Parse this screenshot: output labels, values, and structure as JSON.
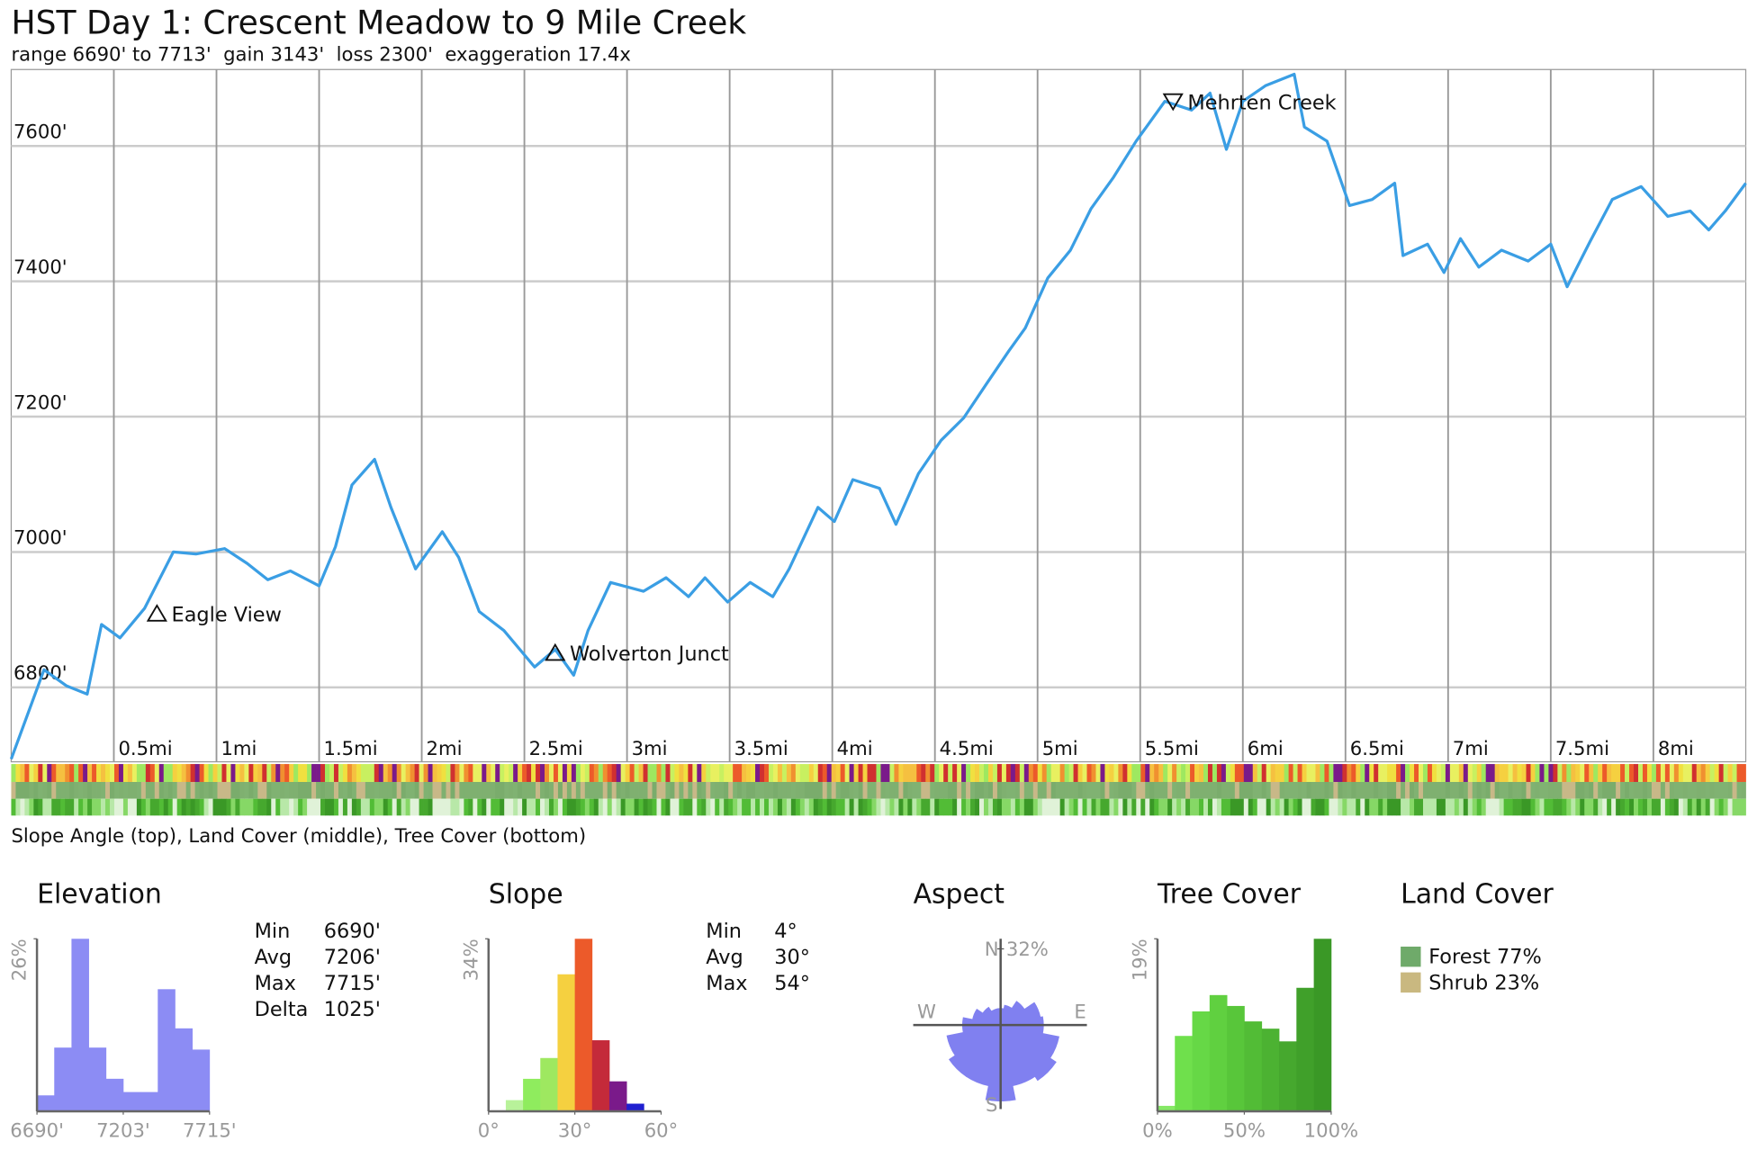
{
  "title": "HST Day 1: Crescent Meadow to 9 Mile Creek",
  "subtitle": "range 6690' to 7713'  gain 3143'  loss 2300'  exaggeration 17.4x",
  "strip_caption": "Slope Angle (top), Land Cover (middle), Tree Cover (bottom)",
  "chart_data": [
    {
      "type": "line",
      "color": "#3a9ee4",
      "grid": true,
      "xlim": [
        0,
        8.45
      ],
      "ylim": [
        6690,
        7713
      ],
      "xticks": [
        {
          "value": 0.5,
          "label": "0.5mi"
        },
        {
          "value": 1,
          "label": "1mi"
        },
        {
          "value": 1.5,
          "label": "1.5mi"
        },
        {
          "value": 2,
          "label": "2mi"
        },
        {
          "value": 2.5,
          "label": "2.5mi"
        },
        {
          "value": 3,
          "label": "3mi"
        },
        {
          "value": 3.5,
          "label": "3.5mi"
        },
        {
          "value": 4,
          "label": "4mi"
        },
        {
          "value": 4.5,
          "label": "4.5mi"
        },
        {
          "value": 5,
          "label": "5mi"
        },
        {
          "value": 5.5,
          "label": "5.5mi"
        },
        {
          "value": 6,
          "label": "6mi"
        },
        {
          "value": 6.5,
          "label": "6.5mi"
        },
        {
          "value": 7,
          "label": "7mi"
        },
        {
          "value": 7.5,
          "label": "7.5mi"
        },
        {
          "value": 8,
          "label": "8mi"
        }
      ],
      "yticks": [
        {
          "value": 6800,
          "label": "6800'"
        },
        {
          "value": 7000,
          "label": "7000'"
        },
        {
          "value": 7200,
          "label": "7200'"
        },
        {
          "value": 7400,
          "label": "7400'"
        },
        {
          "value": 7600,
          "label": "7600'"
        }
      ],
      "x": [
        0,
        0.16,
        0.27,
        0.37,
        0.44,
        0.53,
        0.65,
        0.79,
        0.9,
        1.04,
        1.15,
        1.25,
        1.36,
        1.5,
        1.58,
        1.66,
        1.77,
        1.85,
        1.97,
        2.1,
        2.18,
        2.28,
        2.4,
        2.55,
        2.65,
        2.74,
        2.81,
        2.92,
        3.08,
        3.19,
        3.3,
        3.38,
        3.49,
        3.6,
        3.71,
        3.79,
        3.93,
        4.01,
        4.1,
        4.23,
        4.31,
        4.42,
        4.53,
        4.64,
        4.75,
        4.86,
        4.94,
        5.05,
        5.16,
        5.26,
        5.37,
        5.48,
        5.62,
        5.75,
        5.84,
        5.92,
        6.0,
        6.11,
        6.25,
        6.3,
        6.41,
        6.52,
        6.63,
        6.74,
        6.78,
        6.9,
        6.98,
        7.06,
        7.15,
        7.26,
        7.39,
        7.5,
        7.58,
        7.69,
        7.8,
        7.94,
        8.07,
        8.18,
        8.27,
        8.35,
        8.45
      ],
      "values": [
        6694,
        6826,
        6802,
        6790,
        6893,
        6873,
        6917,
        7000,
        6997,
        7005,
        6983,
        6959,
        6972,
        6950,
        7008,
        7099,
        7137,
        7066,
        6975,
        7030,
        6992,
        6912,
        6884,
        6830,
        6856,
        6818,
        6884,
        6955,
        6942,
        6962,
        6934,
        6962,
        6926,
        6955,
        6934,
        6975,
        7066,
        7045,
        7107,
        7094,
        7041,
        7116,
        7165,
        7198,
        7248,
        7297,
        7331,
        7405,
        7446,
        7507,
        7554,
        7607,
        7666,
        7653,
        7678,
        7595,
        7666,
        7689,
        7706,
        7628,
        7607,
        7512,
        7521,
        7545,
        7438,
        7455,
        7413,
        7463,
        7421,
        7446,
        7430,
        7455,
        7392,
        7458,
        7521,
        7540,
        7496,
        7504,
        7476,
        7504,
        7545
      ],
      "annotations": [
        {
          "text": "Eagle View",
          "x": 0.71,
          "y": 6909,
          "marker": "up"
        },
        {
          "text": "Wolverton Junct",
          "x": 2.65,
          "y": 6851,
          "marker": "up"
        },
        {
          "text": "Mehrten Creek",
          "x": 5.66,
          "y": 7666,
          "marker": "down"
        }
      ]
    },
    {
      "type": "histogram",
      "title": "Elevation",
      "color": "#8c8cf4",
      "bins": [
        6690,
        6792.5,
        6895,
        6997.5,
        7100,
        7202.5,
        7305,
        7407.5,
        7510,
        7612.5,
        7715
      ],
      "values": [
        2.4,
        9.6,
        26,
        9.6,
        4.9,
        2.9,
        2.9,
        18.4,
        12.5,
        9.3
      ],
      "ylim": [
        0,
        26
      ],
      "yticks": [
        {
          "value": 26,
          "label": "26%"
        }
      ],
      "xticks": [
        {
          "value": 6690,
          "label": "6690'"
        },
        {
          "value": 7202.5,
          "label": "7203'"
        },
        {
          "value": 7715,
          "label": "7715'"
        }
      ],
      "stats": {
        "labels": [
          "Min",
          "Avg",
          "Max",
          "Delta"
        ],
        "values": [
          "6690'",
          "7206'",
          "7715'",
          "1025'"
        ]
      }
    },
    {
      "type": "histogram",
      "title": "Slope",
      "colors": [
        "#c8f5a8",
        "#b8f29a",
        "#8fec5e",
        "#9ee860",
        "#f5d040",
        "#ec5a2a",
        "#c42a3a",
        "#7a1a8a",
        "#2020d0",
        "#1010a0"
      ],
      "bins": [
        0,
        6,
        12,
        18,
        24,
        30,
        36,
        42,
        48,
        54,
        60
      ],
      "values": [
        0,
        2.2,
        6.4,
        10.5,
        27,
        34,
        14,
        5.9,
        1.5,
        0
      ],
      "ylim": [
        0,
        34
      ],
      "yticks": [
        {
          "value": 34,
          "label": "34%"
        }
      ],
      "xticks": [
        {
          "value": 0,
          "label": "0°"
        },
        {
          "value": 30,
          "label": "30°"
        },
        {
          "value": 60,
          "label": "60°"
        }
      ],
      "stats": {
        "labels": [
          "Min",
          "Avg",
          "Max"
        ],
        "values": [
          "4°",
          "30°",
          "54°"
        ]
      }
    },
    {
      "type": "polar",
      "title": "Aspect",
      "color": "#8080f0",
      "directions": [
        0,
        22.5,
        45,
        67.5,
        90,
        112.5,
        135,
        157.5,
        180,
        202.5,
        225,
        247.5,
        270,
        292.5,
        315,
        337.5
      ],
      "values": [
        7,
        8.5,
        12,
        17,
        18,
        25,
        28,
        26,
        32,
        26,
        26,
        23,
        16,
        12,
        9,
        7
      ],
      "rlim": [
        0,
        32
      ],
      "rticks": [
        {
          "value": 32,
          "label": "32%"
        }
      ],
      "axis_labels": [
        "N",
        "E",
        "S",
        "W"
      ]
    },
    {
      "type": "histogram",
      "title": "Tree Cover",
      "colors": [
        "#86e866",
        "#6fe04c",
        "#66d846",
        "#60d040",
        "#58c63a",
        "#52bc36",
        "#4cb232",
        "#46a82e",
        "#40a02a",
        "#3a9826"
      ],
      "bins": [
        0,
        10,
        20,
        30,
        40,
        50,
        60,
        70,
        80,
        90,
        100
      ],
      "values": [
        0.6,
        8.3,
        11,
        12.8,
        11.6,
        9.9,
        9.1,
        7.7,
        13.6,
        19
      ],
      "ylim": [
        0,
        19
      ],
      "yticks": [
        {
          "value": 19,
          "label": "19%"
        }
      ],
      "xticks": [
        {
          "value": 0,
          "label": "0%"
        },
        {
          "value": 50,
          "label": "50%"
        },
        {
          "value": 100,
          "label": "100%"
        }
      ]
    },
    {
      "type": "legend",
      "title": "Land Cover",
      "categories": [
        "Forest",
        "Shrub"
      ],
      "values": [
        77,
        23
      ],
      "value_labels": [
        "77%",
        "23%"
      ],
      "colors": [
        "#6faa6a",
        "#c9b880"
      ]
    }
  ]
}
